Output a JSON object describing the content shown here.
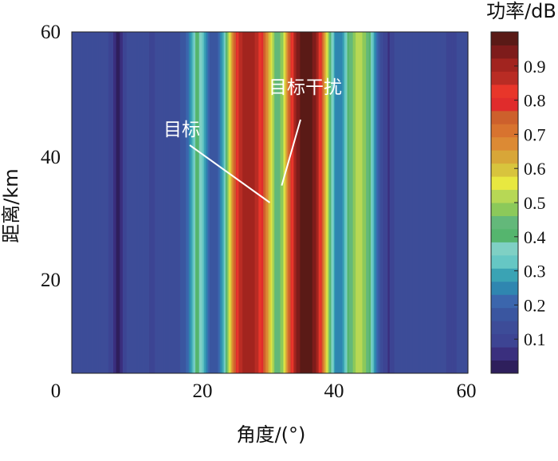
{
  "chart_data": {
    "type": "heatmap",
    "xlabel": "角度/(°)",
    "ylabel": "距离/km",
    "xlim": [
      0,
      60
    ],
    "ylim": [
      0,
      60
    ],
    "x_ticks": [
      "0",
      "20",
      "40",
      "60"
    ],
    "y_ticks": [
      "20",
      "40",
      "60"
    ],
    "colorbar": {
      "label": "功率/dB",
      "range": [
        0,
        1
      ],
      "ticks": [
        "0.1",
        "0.2",
        "0.3",
        "0.4",
        "0.5",
        "0.6",
        "0.7",
        "0.8",
        "0.9"
      ],
      "colors": [
        "#2e1f5c",
        "#3a2f7e",
        "#3d4493",
        "#3d4c98",
        "#3a56a0",
        "#3b66ad",
        "#2f86b0",
        "#3aa3b4",
        "#66c7c4",
        "#7fd0c4",
        "#55b56e",
        "#63b87a",
        "#8cc95a",
        "#b7d855",
        "#e8e840",
        "#d8c43d",
        "#d8a638",
        "#dc8a34",
        "#d8732f",
        "#cd602c",
        "#e02c2c",
        "#e8362a",
        "#b92c24",
        "#a2241f",
        "#7e1c1b",
        "#5a1a16"
      ]
    },
    "x": [
      0,
      1,
      2,
      3,
      4,
      5,
      6,
      7,
      8,
      9,
      10,
      11,
      12,
      13,
      14,
      15,
      16,
      17,
      18,
      19,
      20,
      21,
      22,
      23,
      24,
      25,
      26,
      27,
      28,
      29,
      30,
      31,
      32,
      33,
      34,
      35,
      36,
      37,
      38,
      39,
      40,
      41,
      42,
      43,
      44,
      45,
      46,
      47,
      48,
      49,
      50,
      51,
      52,
      53,
      54,
      55,
      56,
      57,
      58,
      59,
      60
    ],
    "values": [
      0.15,
      0.15,
      0.15,
      0.15,
      0.15,
      0.14,
      0.1,
      0.02,
      0.1,
      0.15,
      0.15,
      0.13,
      0.11,
      0.12,
      0.15,
      0.15,
      0.15,
      0.16,
      0.26,
      0.43,
      0.3,
      0.18,
      0.17,
      0.3,
      0.58,
      0.82,
      0.9,
      0.9,
      0.88,
      0.78,
      0.6,
      0.42,
      0.5,
      0.75,
      0.93,
      0.99,
      0.99,
      0.93,
      0.75,
      0.45,
      0.25,
      0.27,
      0.42,
      0.5,
      0.5,
      0.43,
      0.25,
      0.12,
      0.07,
      0.12,
      0.14,
      0.15,
      0.15,
      0.15,
      0.15,
      0.15,
      0.15,
      0.1,
      0.1,
      0.15,
      0.15
    ],
    "annotations": [
      {
        "text": "目标",
        "points_to_x": 30,
        "points_to_y": 30
      },
      {
        "text": "目标干扰",
        "points_to_x": 31.8,
        "points_to_y": 33
      }
    ]
  }
}
